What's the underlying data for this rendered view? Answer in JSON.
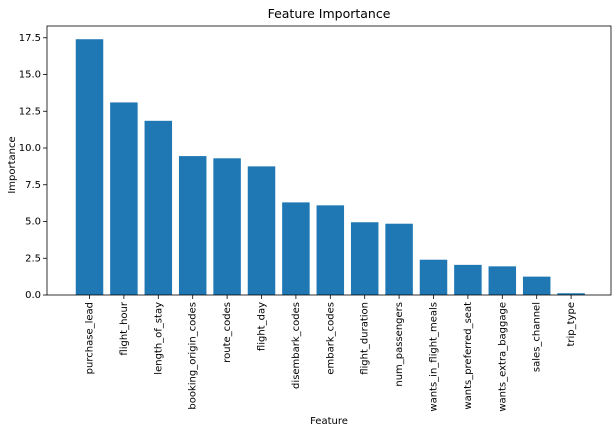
{
  "chart_data": {
    "type": "bar",
    "title": "Feature Importance",
    "xlabel": "Feature",
    "ylabel": "Importance",
    "ylim": [
      0,
      18.3
    ],
    "yticks": [
      0.0,
      2.5,
      5.0,
      7.5,
      10.0,
      12.5,
      15.0,
      17.5
    ],
    "ytick_labels": [
      "0.0",
      "2.5",
      "5.0",
      "7.5",
      "10.0",
      "12.5",
      "15.0",
      "17.5"
    ],
    "grid": false,
    "bar_color": "#1f77b4",
    "categories": [
      "purchase_lead",
      "flight_hour",
      "length_of_stay",
      "booking_origin_codes",
      "route_codes",
      "flight_day",
      "disembark_codes",
      "embark_codes",
      "flight_duration",
      "num_passengers",
      "wants_in_flight_meals",
      "wants_preferred_seat",
      "wants_extra_baggage",
      "sales_channel",
      "trip_type"
    ],
    "values": [
      17.4,
      13.1,
      11.85,
      9.45,
      9.3,
      8.75,
      6.3,
      6.1,
      4.95,
      4.85,
      2.4,
      2.05,
      1.95,
      1.25,
      0.12
    ]
  }
}
